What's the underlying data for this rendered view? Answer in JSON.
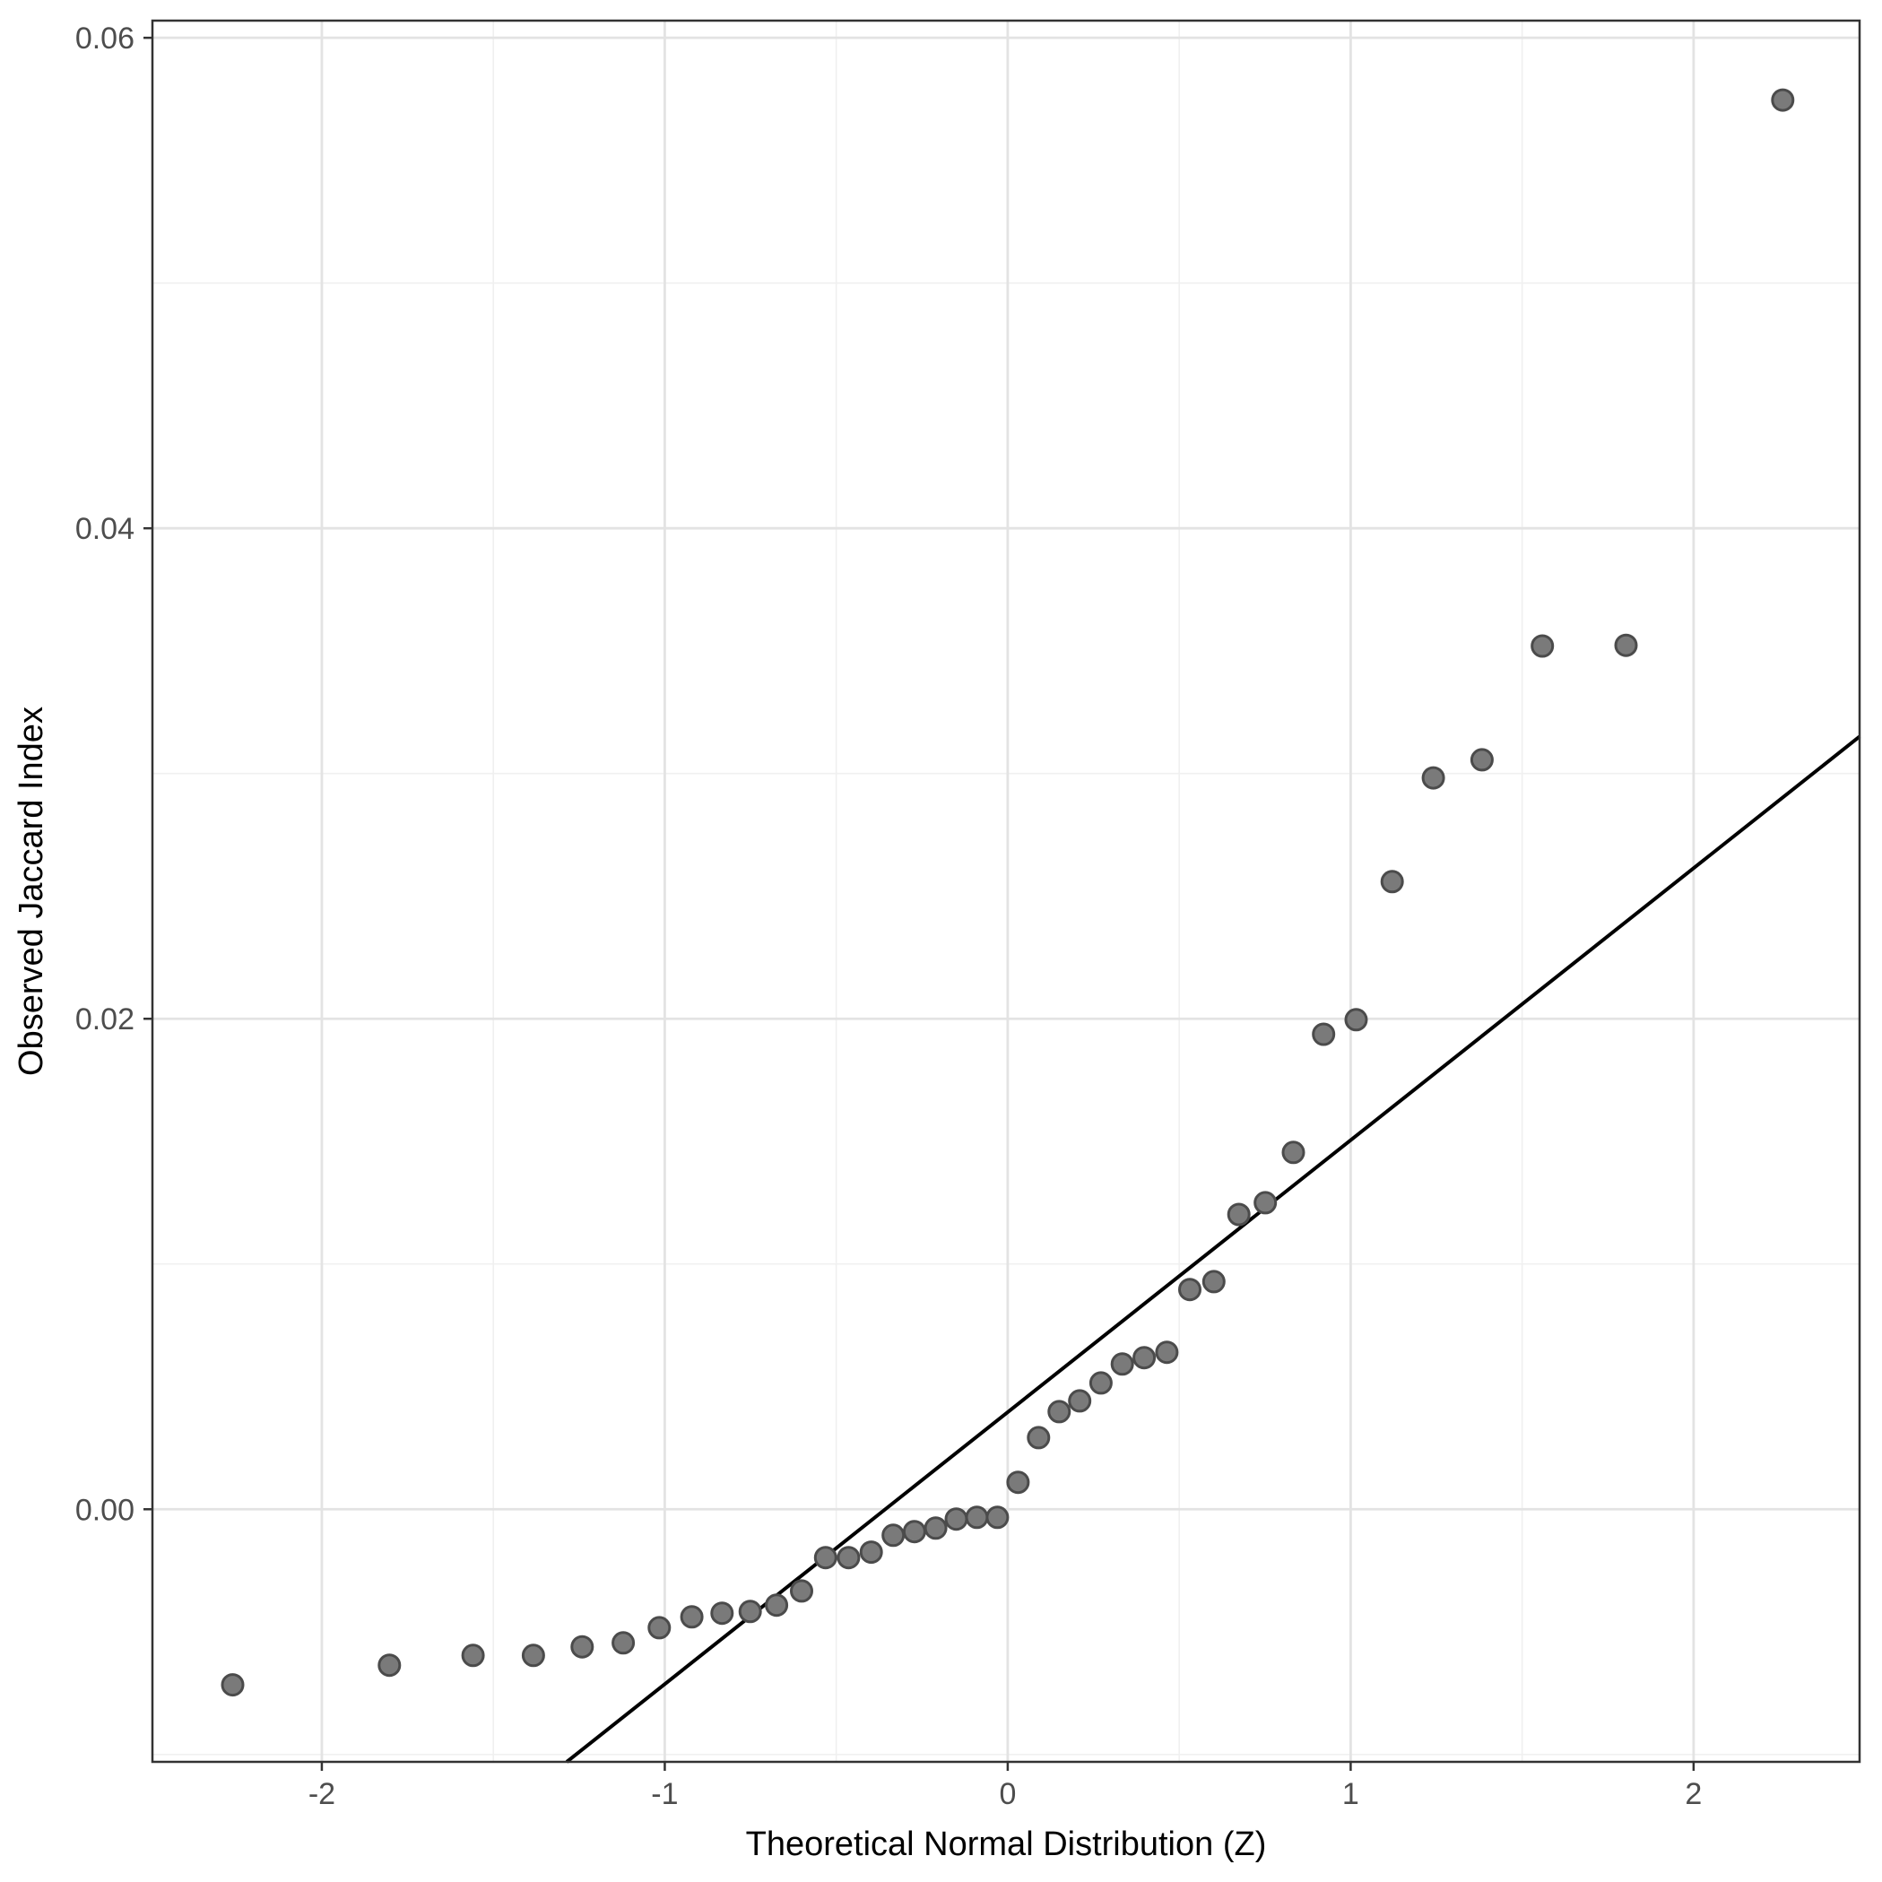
{
  "chart_data": {
    "type": "scatter",
    "title": "",
    "xlabel": "Theoretical Normal Distribution (Z)",
    "ylabel": "Observed Jaccard Index",
    "xlim": [
      -2.494,
      2.484
    ],
    "ylim": [
      -0.0103,
      0.0607
    ],
    "grid": "major and minor gridlines on, light gray on white panel",
    "legend_position": "none",
    "x_major_ticks": [
      -2,
      -1,
      0,
      1,
      2
    ],
    "x_tick_labels": [
      "-2",
      "-1",
      "0",
      "1",
      "2"
    ],
    "x_minor_ticks": [
      -1.5,
      -0.5,
      0.5,
      1.5
    ],
    "y_major_ticks": [
      0.0,
      0.02,
      0.04,
      0.06
    ],
    "y_tick_labels": [
      "0.00",
      "0.02",
      "0.04",
      "0.06"
    ],
    "y_minor_ticks": [
      -0.01,
      0.01,
      0.03,
      0.05
    ],
    "series": [
      {
        "name": "qq-points",
        "x": [
          -2.26,
          -1.803,
          -1.559,
          -1.383,
          -1.241,
          -1.121,
          -1.016,
          -0.921,
          -0.833,
          -0.751,
          -0.674,
          -0.601,
          -0.531,
          -0.464,
          -0.398,
          -0.334,
          -0.272,
          -0.21,
          -0.15,
          -0.09,
          -0.03,
          0.03,
          0.09,
          0.15,
          0.21,
          0.272,
          0.334,
          0.398,
          0.464,
          0.531,
          0.601,
          0.674,
          0.751,
          0.833,
          0.921,
          1.016,
          1.121,
          1.241,
          1.383,
          1.559,
          1.803,
          2.26
        ],
        "y": [
          -0.00716,
          -0.00636,
          -0.00596,
          -0.00596,
          -0.00561,
          -0.00545,
          -0.00483,
          -0.00439,
          -0.00424,
          -0.00417,
          -0.00391,
          -0.00333,
          -0.00197,
          -0.00197,
          -0.00175,
          -0.00106,
          -0.00091,
          -0.00077,
          -0.0004,
          -0.00033,
          -0.00033,
          0.0011,
          0.00292,
          0.00398,
          0.00442,
          0.00515,
          0.00592,
          0.00618,
          0.0064,
          0.00896,
          0.00928,
          0.01202,
          0.0125,
          0.01455,
          0.01937,
          0.01996,
          0.02559,
          0.02982,
          0.03056,
          0.0352,
          0.03523,
          0.05746
        ]
      }
    ],
    "reference_line": {
      "name": "qq-line",
      "intercept": 0.00396,
      "slope": 0.01109
    }
  },
  "style": {
    "panel_background": "#ffffff",
    "panel_border_color": "#333333",
    "major_grid_color": "#e3e3e3",
    "minor_grid_color": "#f0f0f0",
    "tick_mark_color": "#333333",
    "tick_label_color": "#4d4d4d",
    "axis_title_color": "#000000",
    "point_fill": "#7a7a7a",
    "point_stroke": "#4b4b4b",
    "line_color": "#000000"
  }
}
